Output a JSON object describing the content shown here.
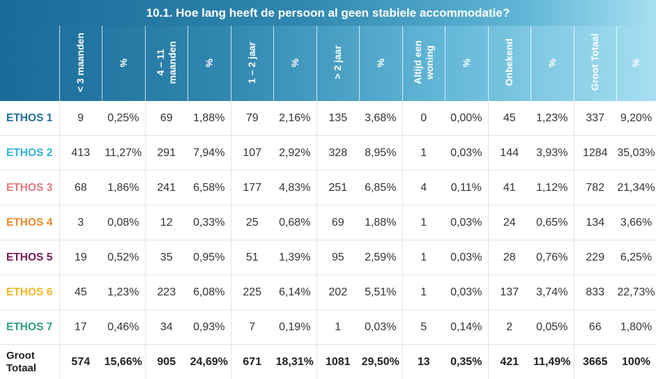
{
  "title": "10.1. Hoe lang heeft de persoon al geen stabiele accommodatie?",
  "colors": {
    "header_gradient": [
      "#1a6b98",
      "#2f86ae",
      "#61b6d6",
      "#a6dff1"
    ],
    "ethos1": "#1f6e9c",
    "ethos2": "#2fb3de",
    "ethos3": "#e07a7d",
    "ethos4": "#ee8a2d",
    "ethos5": "#7a1a55",
    "ethos6": "#f0b82a",
    "ethos7": "#2e9d86",
    "total": "#222222"
  },
  "chart_data": {
    "type": "table",
    "title": "10.1. Hoe lang heeft de persoon al geen stabiele accommodatie?",
    "columns": [
      "< 3 maanden",
      "%",
      "4 – 11 maanden",
      "%",
      "1 – 2 jaar",
      "%",
      "> 2 jaar",
      "%",
      "Altijd een woning",
      "%",
      "Onbekend",
      "%",
      "Groot Totaal",
      "%"
    ],
    "header_labels": [
      "< 3 maanden",
      "%",
      "4 – 11\nmaanden",
      "%",
      "1 – 2 jaar",
      "%",
      "> 2 jaar",
      "%",
      "Altijd een\nwoning",
      "%",
      "Onbekend",
      "%",
      "Groot Totaal",
      "%"
    ],
    "rows": [
      {
        "label": "ETHOS 1",
        "color_key": "ethos1",
        "cells": [
          "9",
          "0,25%",
          "69",
          "1,88%",
          "79",
          "2,16%",
          "135",
          "3,68%",
          "0",
          "0,00%",
          "45",
          "1,23%",
          "337",
          "9,20%"
        ]
      },
      {
        "label": "ETHOS 2",
        "color_key": "ethos2",
        "cells": [
          "413",
          "11,27%",
          "291",
          "7,94%",
          "107",
          "2,92%",
          "328",
          "8,95%",
          "1",
          "0,03%",
          "144",
          "3,93%",
          "1284",
          "35,03%"
        ]
      },
      {
        "label": "ETHOS 3",
        "color_key": "ethos3",
        "cells": [
          "68",
          "1,86%",
          "241",
          "6,58%",
          "177",
          "4,83%",
          "251",
          "6,85%",
          "4",
          "0,11%",
          "41",
          "1,12%",
          "782",
          "21,34%"
        ]
      },
      {
        "label": "ETHOS 4",
        "color_key": "ethos4",
        "cells": [
          "3",
          "0,08%",
          "12",
          "0,33%",
          "25",
          "0,68%",
          "69",
          "1,88%",
          "1",
          "0,03%",
          "24",
          "0,65%",
          "134",
          "3,66%"
        ]
      },
      {
        "label": "ETHOS 5",
        "color_key": "ethos5",
        "cells": [
          "19",
          "0,52%",
          "35",
          "0,95%",
          "51",
          "1,39%",
          "95",
          "2,59%",
          "1",
          "0,03%",
          "28",
          "0,76%",
          "229",
          "6,25%"
        ]
      },
      {
        "label": "ETHOS 6",
        "color_key": "ethos6",
        "cells": [
          "45",
          "1,23%",
          "223",
          "6,08%",
          "225",
          "6,14%",
          "202",
          "5,51%",
          "1",
          "0,03%",
          "137",
          "3,74%",
          "833",
          "22,73%"
        ]
      },
      {
        "label": "ETHOS 7",
        "color_key": "ethos7",
        "cells": [
          "17",
          "0,46%",
          "34",
          "0,93%",
          "7",
          "0,19%",
          "1",
          "0,03%",
          "5",
          "0,14%",
          "2",
          "0,05%",
          "66",
          "1,80%"
        ]
      }
    ],
    "total": {
      "label": "Groot Totaal",
      "cells": [
        "574",
        "15,66%",
        "905",
        "24,69%",
        "671",
        "18,31%",
        "1081",
        "29,50%",
        "13",
        "0,35%",
        "421",
        "11,49%",
        "3665",
        "100%"
      ]
    }
  }
}
